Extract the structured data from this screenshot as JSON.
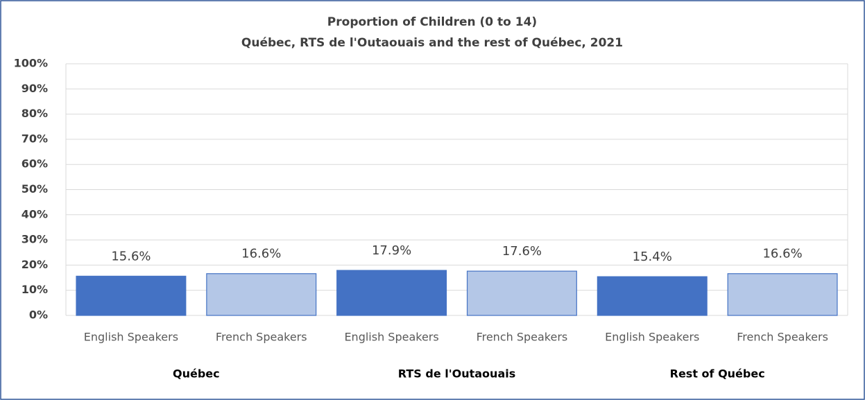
{
  "chart_data": {
    "type": "bar",
    "title": "Proportion of Children (0 to 14)",
    "subtitle": "Québec, RTS de l'Outaouais and the rest of Québec, 2021",
    "categories": [
      "English Speakers",
      "French Speakers",
      "English Speakers",
      "French Speakers",
      "English Speakers",
      "French Speakers"
    ],
    "groups": [
      "Québec",
      "RTS de l'Outaouais",
      "Rest of Québec"
    ],
    "values": [
      15.6,
      16.6,
      17.9,
      17.6,
      15.4,
      16.6
    ],
    "value_labels": [
      "15.6%",
      "16.6%",
      "17.9%",
      "17.6%",
      "15.4%",
      "16.6%"
    ],
    "colors": [
      "#4472c4",
      "#b4c7e7",
      "#4472c4",
      "#b4c7e7",
      "#4472c4",
      "#b4c7e7"
    ],
    "ylim": [
      0,
      100
    ],
    "yticks": [
      {
        "value": 0,
        "label": "0%"
      },
      {
        "value": 10,
        "label": "10%"
      },
      {
        "value": 20,
        "label": "20%"
      },
      {
        "value": 30,
        "label": "30%"
      },
      {
        "value": 40,
        "label": "40%"
      },
      {
        "value": 50,
        "label": "50%"
      },
      {
        "value": 60,
        "label": "60%"
      },
      {
        "value": 70,
        "label": "70%"
      },
      {
        "value": 80,
        "label": "80%"
      },
      {
        "value": 90,
        "label": "90%"
      },
      {
        "value": 100,
        "label": "100%"
      }
    ],
    "grid": true
  }
}
